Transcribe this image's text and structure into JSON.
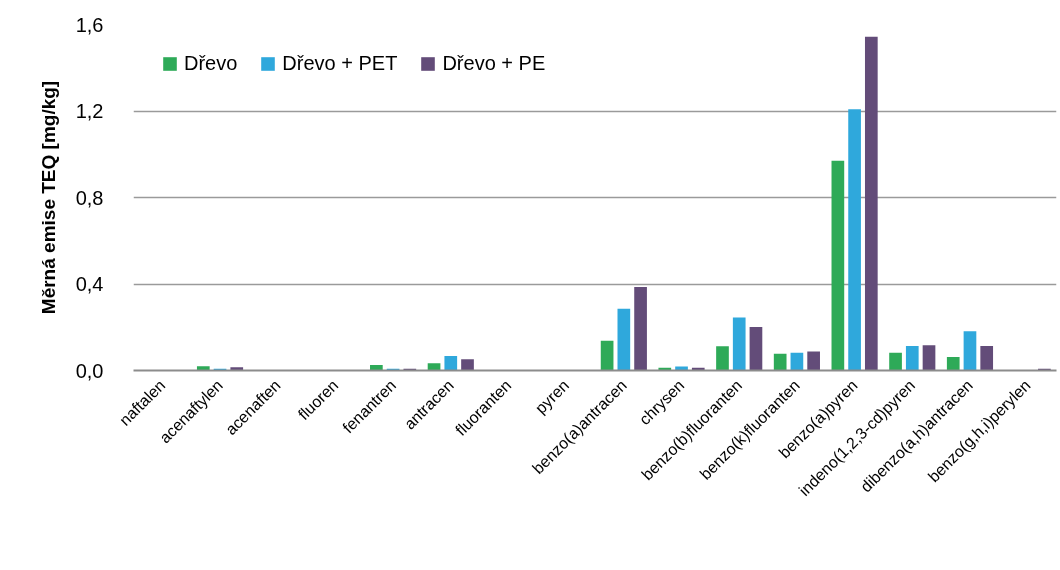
{
  "chart_data": {
    "type": "bar",
    "ylabel": "Měrná emise TEQ [mg/kg]",
    "categories": [
      "naftalen",
      "acenaftylen",
      "acenaften",
      "fluoren",
      "fenantren",
      "antracen",
      "fluoranten",
      "pyren",
      "benzo(a)antracen",
      "chrysen",
      "benzo(b)fluoranten",
      "benzo(k)fluoranten",
      "benzo(a)pyren",
      "indeno(1,2,3-cd)pyren",
      "dibenzo(a,h)antracen",
      "benzo(g,h,i)perylen"
    ],
    "series": [
      {
        "name": "Dřevo",
        "color": "#2eaa58",
        "values": [
          0,
          0.02,
          0,
          0,
          0.025,
          0.033,
          0,
          0,
          0.137,
          0.013,
          0.112,
          0.077,
          0.97,
          0.082,
          0.062,
          0
        ]
      },
      {
        "name": "Dřevo + PET",
        "color": "#2fa8dc",
        "values": [
          0,
          0.008,
          0,
          0,
          0.008,
          0.067,
          0,
          0,
          0.286,
          0.018,
          0.245,
          0.082,
          1.208,
          0.113,
          0.182,
          0
        ]
      },
      {
        "name": "Dřevo + PE",
        "color": "#634c79",
        "values": [
          0,
          0.015,
          0,
          0,
          0.008,
          0.052,
          0,
          0,
          0.386,
          0.013,
          0.201,
          0.088,
          1.543,
          0.117,
          0.113,
          0.008
        ]
      }
    ],
    "ylim": [
      0,
      1.6
    ],
    "yticks": [
      {
        "value": 0,
        "label": "0,0"
      },
      {
        "value": 0.4,
        "label": "0,4"
      },
      {
        "value": 0.8,
        "label": "0,8"
      },
      {
        "value": 1.2,
        "label": "1,2"
      },
      {
        "value": 1.6,
        "label": "1,6"
      }
    ],
    "grid": "y",
    "legend": "top left"
  }
}
